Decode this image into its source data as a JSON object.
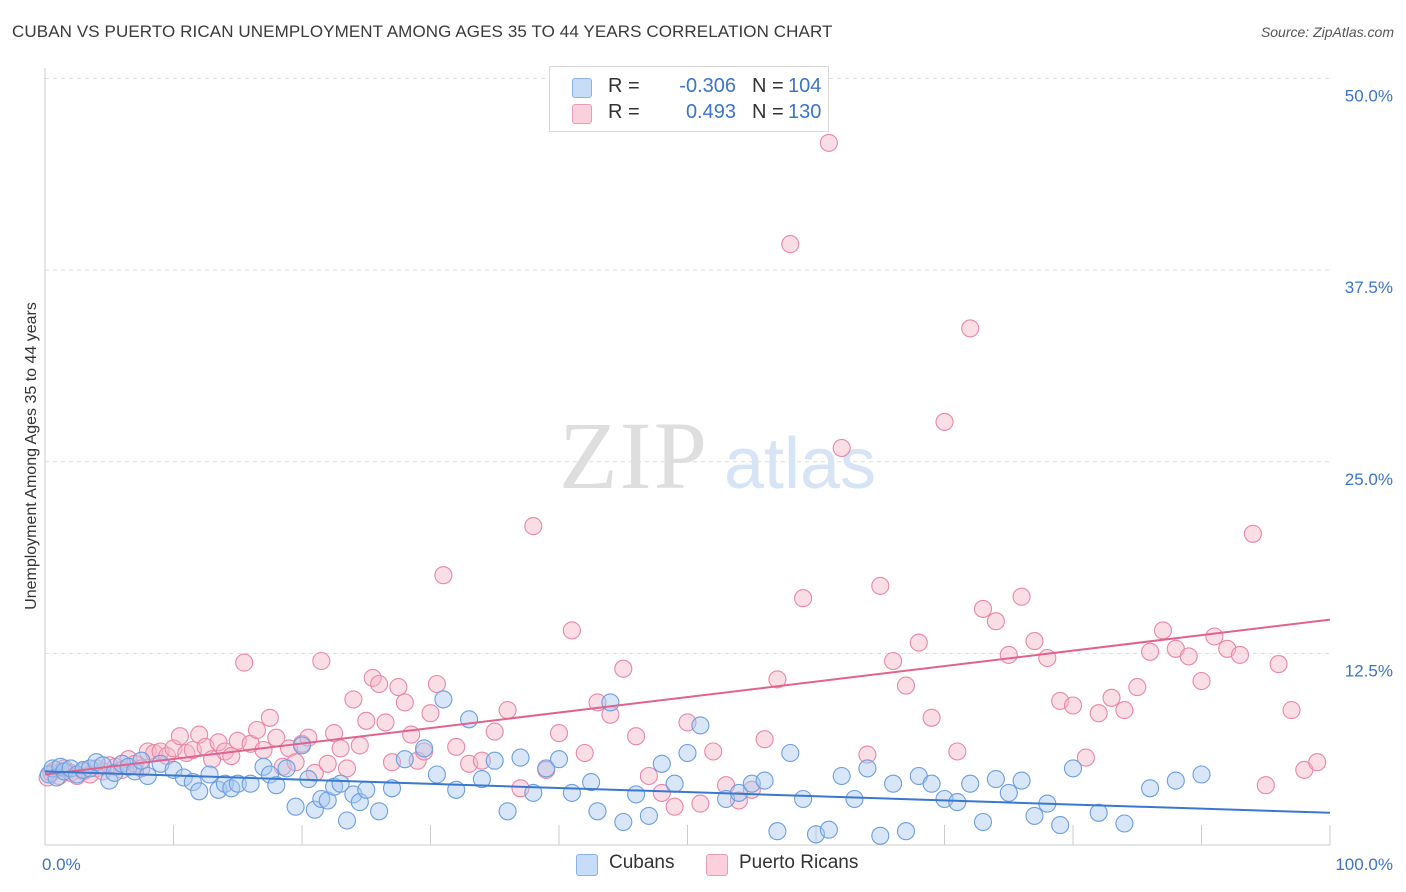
{
  "title": "CUBAN VS PUERTO RICAN UNEMPLOYMENT AMONG AGES 35 TO 44 YEARS CORRELATION CHART",
  "source": "Source: ZipAtlas.com",
  "watermark": {
    "zip": "ZIP",
    "atlas": "atlas"
  },
  "legend": {
    "rows": [
      {
        "r_label": "R =",
        "r_value": "-0.306",
        "n_label": "N =",
        "n_value": "104",
        "color": "#a9c8f0"
      },
      {
        "r_label": "R =",
        "r_value": "0.493",
        "n_label": "N =",
        "n_value": "130",
        "color": "#f5b5c8"
      }
    ]
  },
  "bottom_legend": [
    {
      "label": "Cubans",
      "color": "#a9c8f0"
    },
    {
      "label": "Puerto Ricans",
      "color": "#f5b5c8"
    }
  ],
  "chart_data": {
    "type": "scatter",
    "title": "CUBAN VS PUERTO RICAN UNEMPLOYMENT AMONG AGES 35 TO 44 YEARS CORRELATION CHART",
    "xlabel": "",
    "ylabel": "Unemployment Among Ages 35 to 44 years",
    "xlim": [
      0,
      100
    ],
    "ylim": [
      0,
      52
    ],
    "x_tick_labels": [
      {
        "value": 0,
        "label": "0.0%"
      },
      {
        "value": 100,
        "label": "100.0%"
      }
    ],
    "y_tick_labels": [
      {
        "value": 12.5,
        "label": "12.5%"
      },
      {
        "value": 25,
        "label": "25.0%"
      },
      {
        "value": 37.5,
        "label": "37.5%"
      },
      {
        "value": 50,
        "label": "50.0%"
      }
    ],
    "grid": "horizontal dashed",
    "legend_position": "top-center",
    "colors": {
      "cubans_fill": "#a9c8f0",
      "cubans_stroke": "#6a9fe0",
      "cubans_line": "#3a78d0",
      "pr_fill": "#f5b5c8",
      "pr_stroke": "#ea86a6",
      "pr_line": "#e0628d",
      "axis_label": "#3b74c8"
    },
    "series": [
      {
        "name": "Cubans",
        "trend": {
          "x": [
            0,
            100
          ],
          "y": [
            4.8,
            2.1
          ]
        },
        "points": [
          [
            0.3,
            4.6
          ],
          [
            0.6,
            5.0
          ],
          [
            0.9,
            4.4
          ],
          [
            1.2,
            5.1
          ],
          [
            1.5,
            4.8
          ],
          [
            2.0,
            5.0
          ],
          [
            2.5,
            4.6
          ],
          [
            3.0,
            4.9
          ],
          [
            3.5,
            5.0
          ],
          [
            4.0,
            5.4
          ],
          [
            4.5,
            5.2
          ],
          [
            5.0,
            4.2
          ],
          [
            5.4,
            4.7
          ],
          [
            6.0,
            5.3
          ],
          [
            6.5,
            5.1
          ],
          [
            7.0,
            4.8
          ],
          [
            7.5,
            5.5
          ],
          [
            8.0,
            4.5
          ],
          [
            9.0,
            5.3
          ],
          [
            10.0,
            4.9
          ],
          [
            10.8,
            4.4
          ],
          [
            11.5,
            4.1
          ],
          [
            12.0,
            3.5
          ],
          [
            12.8,
            4.6
          ],
          [
            13.5,
            3.6
          ],
          [
            14.0,
            4.0
          ],
          [
            14.5,
            3.7
          ],
          [
            15.0,
            4.0
          ],
          [
            16.0,
            4.0
          ],
          [
            17.0,
            5.1
          ],
          [
            17.5,
            4.6
          ],
          [
            18.0,
            3.9
          ],
          [
            18.8,
            5.0
          ],
          [
            19.5,
            2.5
          ],
          [
            20.0,
            6.5
          ],
          [
            20.5,
            4.3
          ],
          [
            21.0,
            2.3
          ],
          [
            21.5,
            3.0
          ],
          [
            22.0,
            2.9
          ],
          [
            22.5,
            3.8
          ],
          [
            23.0,
            4.0
          ],
          [
            23.5,
            1.6
          ],
          [
            24.0,
            3.3
          ],
          [
            24.5,
            2.8
          ],
          [
            25.0,
            3.6
          ],
          [
            26.0,
            2.2
          ],
          [
            27.0,
            3.7
          ],
          [
            28.0,
            5.6
          ],
          [
            29.5,
            6.3
          ],
          [
            30.5,
            4.6
          ],
          [
            31.0,
            9.5
          ],
          [
            32.0,
            3.6
          ],
          [
            33.0,
            8.2
          ],
          [
            34.0,
            4.3
          ],
          [
            35.0,
            5.5
          ],
          [
            36.0,
            2.2
          ],
          [
            37.0,
            5.7
          ],
          [
            38.0,
            3.4
          ],
          [
            39.0,
            5.0
          ],
          [
            40.0,
            5.6
          ],
          [
            41.0,
            3.4
          ],
          [
            42.5,
            4.1
          ],
          [
            43.0,
            2.2
          ],
          [
            44.0,
            9.3
          ],
          [
            45.0,
            1.5
          ],
          [
            46.0,
            3.3
          ],
          [
            47.0,
            1.9
          ],
          [
            48.0,
            5.3
          ],
          [
            49.0,
            4.0
          ],
          [
            50.0,
            6.0
          ],
          [
            51.0,
            7.8
          ],
          [
            53.0,
            3.0
          ],
          [
            54.0,
            3.4
          ],
          [
            55.0,
            4.0
          ],
          [
            56.0,
            4.2
          ],
          [
            57.0,
            0.9
          ],
          [
            58.0,
            6.0
          ],
          [
            59.0,
            3.0
          ],
          [
            60.0,
            0.7
          ],
          [
            61.0,
            1.0
          ],
          [
            62.0,
            4.5
          ],
          [
            63.0,
            3.0
          ],
          [
            64.0,
            5.0
          ],
          [
            65.0,
            0.6
          ],
          [
            66.0,
            4.0
          ],
          [
            67.0,
            0.9
          ],
          [
            68.0,
            4.5
          ],
          [
            69.0,
            4.0
          ],
          [
            70.0,
            3.0
          ],
          [
            71.0,
            2.8
          ],
          [
            72.0,
            4.0
          ],
          [
            73.0,
            1.5
          ],
          [
            74.0,
            4.3
          ],
          [
            75.0,
            3.4
          ],
          [
            76.0,
            4.2
          ],
          [
            77.0,
            1.9
          ],
          [
            78.0,
            2.7
          ],
          [
            79.0,
            1.3
          ],
          [
            80.0,
            5.0
          ],
          [
            82.0,
            2.1
          ],
          [
            84.0,
            1.4
          ],
          [
            86.0,
            3.7
          ],
          [
            88.0,
            4.2
          ],
          [
            90.0,
            4.6
          ]
        ]
      },
      {
        "name": "Puerto Ricans",
        "trend": {
          "x": [
            0,
            100
          ],
          "y": [
            4.6,
            14.7
          ]
        },
        "points": [
          [
            0.2,
            4.4
          ],
          [
            0.5,
            4.7
          ],
          [
            0.8,
            4.9
          ],
          [
            1.1,
            4.5
          ],
          [
            1.5,
            5.0
          ],
          [
            2.0,
            4.7
          ],
          [
            2.5,
            4.5
          ],
          [
            3.0,
            4.8
          ],
          [
            3.5,
            4.6
          ],
          [
            4.0,
            5.0
          ],
          [
            4.5,
            4.8
          ],
          [
            5.0,
            5.2
          ],
          [
            5.5,
            5.1
          ],
          [
            6.0,
            4.9
          ],
          [
            6.5,
            5.6
          ],
          [
            7.0,
            5.3
          ],
          [
            7.5,
            5.0
          ],
          [
            8.0,
            6.1
          ],
          [
            8.5,
            6.0
          ],
          [
            9.0,
            6.1
          ],
          [
            9.5,
            5.8
          ],
          [
            10.0,
            6.3
          ],
          [
            10.5,
            7.1
          ],
          [
            11.0,
            6.0
          ],
          [
            11.5,
            6.2
          ],
          [
            12.0,
            7.2
          ],
          [
            12.5,
            6.4
          ],
          [
            13.0,
            5.6
          ],
          [
            13.5,
            6.7
          ],
          [
            14.0,
            6.1
          ],
          [
            14.5,
            5.8
          ],
          [
            15.0,
            6.8
          ],
          [
            15.5,
            11.9
          ],
          [
            16.0,
            6.6
          ],
          [
            16.5,
            7.5
          ],
          [
            17.0,
            6.2
          ],
          [
            17.5,
            8.3
          ],
          [
            18.0,
            7.0
          ],
          [
            18.5,
            5.1
          ],
          [
            19.0,
            6.3
          ],
          [
            19.5,
            5.4
          ],
          [
            20.0,
            6.6
          ],
          [
            20.5,
            7.0
          ],
          [
            21.0,
            4.7
          ],
          [
            21.5,
            12.0
          ],
          [
            22.0,
            5.3
          ],
          [
            22.5,
            7.3
          ],
          [
            23.0,
            6.3
          ],
          [
            23.5,
            5.0
          ],
          [
            24.0,
            9.5
          ],
          [
            24.5,
            6.5
          ],
          [
            25.0,
            8.1
          ],
          [
            25.5,
            10.9
          ],
          [
            26.0,
            10.5
          ],
          [
            26.5,
            8.0
          ],
          [
            27.0,
            5.4
          ],
          [
            27.5,
            10.3
          ],
          [
            28.0,
            9.3
          ],
          [
            28.5,
            7.2
          ],
          [
            29.0,
            5.5
          ],
          [
            29.5,
            6.1
          ],
          [
            30.0,
            8.6
          ],
          [
            30.5,
            10.5
          ],
          [
            31.0,
            17.6
          ],
          [
            32.0,
            6.4
          ],
          [
            33.0,
            5.3
          ],
          [
            34.0,
            5.5
          ],
          [
            35.0,
            7.4
          ],
          [
            36.0,
            8.8
          ],
          [
            37.0,
            3.7
          ],
          [
            38.0,
            20.8
          ],
          [
            39.0,
            4.9
          ],
          [
            40.0,
            7.3
          ],
          [
            41.0,
            14.0
          ],
          [
            42.0,
            6.0
          ],
          [
            43.0,
            9.3
          ],
          [
            44.0,
            8.5
          ],
          [
            45.0,
            11.5
          ],
          [
            46.0,
            7.1
          ],
          [
            47.0,
            4.5
          ],
          [
            48.0,
            3.4
          ],
          [
            49.0,
            2.5
          ],
          [
            50.0,
            8.0
          ],
          [
            51.0,
            2.7
          ],
          [
            52.0,
            6.1
          ],
          [
            53.0,
            3.9
          ],
          [
            54.0,
            2.9
          ],
          [
            55.0,
            3.6
          ],
          [
            56.0,
            6.9
          ],
          [
            57.0,
            10.8
          ],
          [
            58.0,
            39.2
          ],
          [
            59.0,
            16.1
          ],
          [
            61.0,
            45.8
          ],
          [
            62.0,
            25.9
          ],
          [
            64.0,
            5.9
          ],
          [
            65.0,
            16.9
          ],
          [
            66.0,
            12.0
          ],
          [
            67.0,
            10.4
          ],
          [
            68.0,
            13.2
          ],
          [
            69.0,
            8.3
          ],
          [
            70.0,
            27.6
          ],
          [
            71.0,
            6.1
          ],
          [
            72.0,
            33.7
          ],
          [
            73.0,
            15.4
          ],
          [
            74.0,
            14.6
          ],
          [
            75.0,
            12.4
          ],
          [
            76.0,
            16.2
          ],
          [
            77.0,
            13.3
          ],
          [
            78.0,
            12.2
          ],
          [
            79.0,
            9.4
          ],
          [
            80.0,
            9.1
          ],
          [
            81.0,
            5.7
          ],
          [
            82.0,
            8.6
          ],
          [
            83.0,
            9.6
          ],
          [
            84.0,
            8.8
          ],
          [
            85.0,
            10.3
          ],
          [
            86.0,
            12.6
          ],
          [
            87.0,
            14.0
          ],
          [
            88.0,
            12.8
          ],
          [
            89.0,
            12.3
          ],
          [
            90.0,
            10.7
          ],
          [
            91.0,
            13.6
          ],
          [
            92.0,
            12.8
          ],
          [
            93.0,
            12.4
          ],
          [
            94.0,
            20.3
          ],
          [
            95.0,
            3.9
          ],
          [
            96.0,
            11.8
          ],
          [
            97.0,
            8.8
          ],
          [
            98.0,
            4.9
          ],
          [
            99.0,
            5.4
          ]
        ]
      }
    ]
  }
}
